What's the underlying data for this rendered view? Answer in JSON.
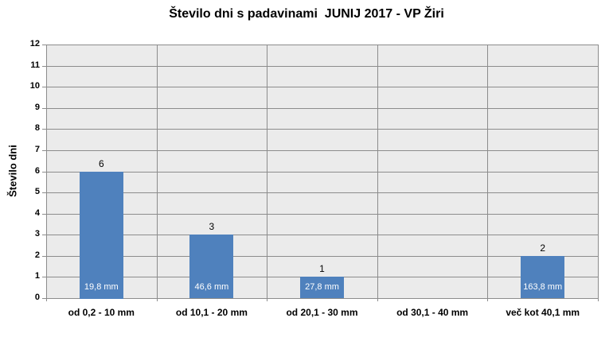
{
  "chart_data": {
    "type": "bar",
    "title": "Število dni s padavinami  JUNIJ 2017 - VP Žiri",
    "ylabel": "Število dni",
    "xlabel": "",
    "categories": [
      "od 0,2 - 10 mm",
      "od 10,1 - 20 mm",
      "od 20,1 - 30 mm",
      "od 30,1 - 40 mm",
      "več kot 40,1 mm"
    ],
    "values": [
      6,
      3,
      1,
      0,
      2
    ],
    "bar_labels": [
      "19,8 mm",
      "46,6 mm",
      "27,8 mm",
      "",
      "163,8 mm"
    ],
    "ylim": [
      0,
      12
    ],
    "ytick_step": 1,
    "grid": true,
    "legend": "none",
    "colors": {
      "bar": "#4F81BD",
      "plot_bg": "#EBEBEB",
      "gridline": "#8C8C8C",
      "bar_label_text": "#FFFFFF",
      "text": "#000000",
      "background": "#FFFFFF"
    }
  }
}
